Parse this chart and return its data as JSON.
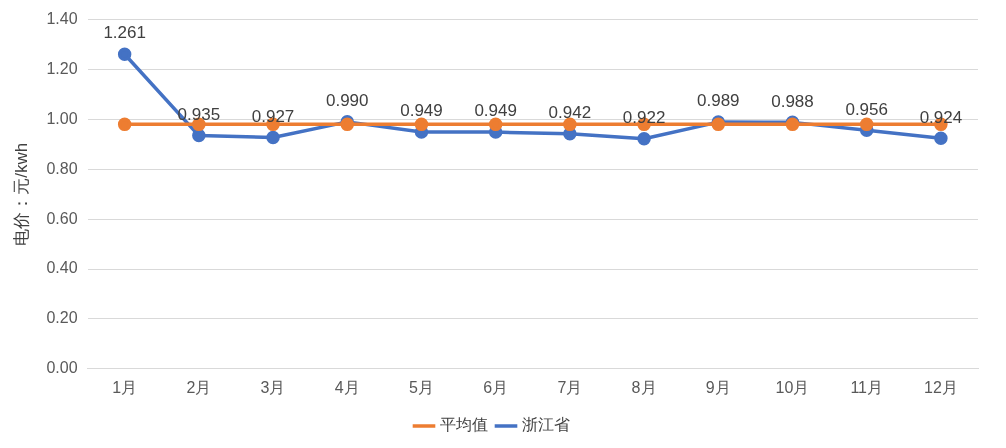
{
  "chart_data": {
    "type": "line",
    "ylabel": "电价：元/kwh",
    "categories": [
      "1月",
      "2月",
      "3月",
      "4月",
      "5月",
      "6月",
      "7月",
      "8月",
      "9月",
      "10月",
      "11月",
      "12月"
    ],
    "series": [
      {
        "name": "浙江省",
        "color": "#4472c4",
        "values": [
          1.261,
          0.935,
          0.927,
          0.99,
          0.949,
          0.949,
          0.942,
          0.922,
          0.989,
          0.988,
          0.956,
          0.924
        ],
        "value_labels": [
          "1.261",
          "0.935",
          "0.927",
          "0.990",
          "0.949",
          "0.949",
          "0.942",
          "0.922",
          "0.989",
          "0.988",
          "0.956",
          "0.924"
        ]
      },
      {
        "name": "平均值",
        "color": "#ed7d31",
        "values": [
          0.98,
          0.98,
          0.98,
          0.98,
          0.98,
          0.98,
          0.98,
          0.98,
          0.98,
          0.98,
          0.98,
          0.98
        ]
      }
    ],
    "ylim": [
      0,
      1.4
    ],
    "yticks": [
      {
        "value": 0,
        "label": "0.00"
      },
      {
        "value": 0.2,
        "label": "0.20"
      },
      {
        "value": 0.4,
        "label": "0.40"
      },
      {
        "value": 0.6,
        "label": "0.60"
      },
      {
        "value": 0.8,
        "label": "0.80"
      },
      {
        "value": 1.0,
        "label": "1.00"
      },
      {
        "value": 1.2,
        "label": "1.20"
      },
      {
        "value": 1.4,
        "label": "1.40"
      }
    ],
    "grid": "y",
    "legend": "bottom",
    "marker": "circle",
    "line_style": "solid"
  }
}
